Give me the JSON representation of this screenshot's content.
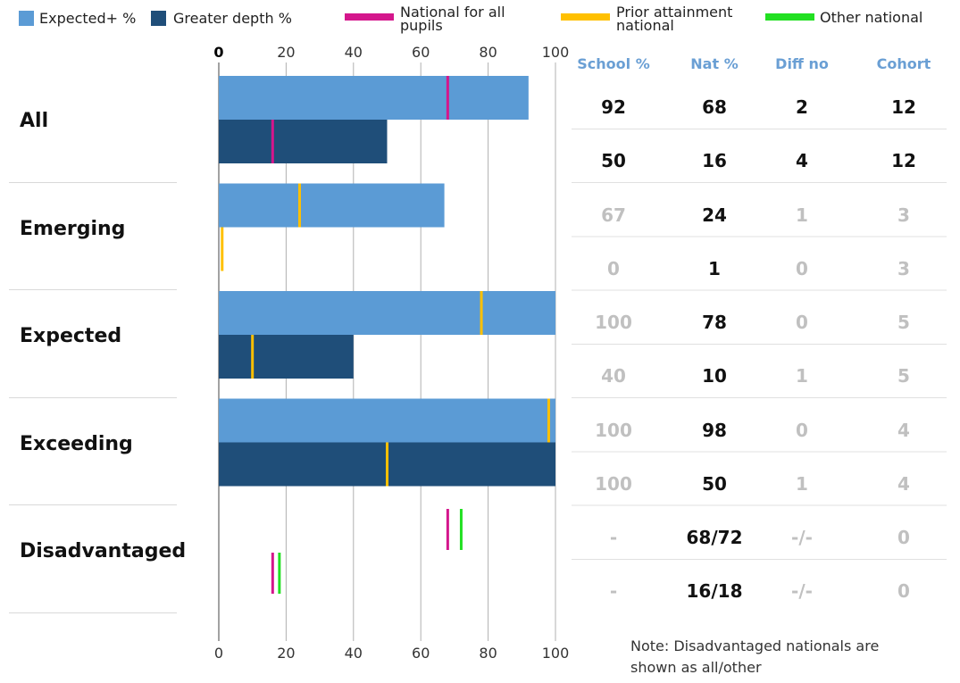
{
  "legend": [
    {
      "label": "Expected+ %",
      "color": "#5b9bd5",
      "shape": "square"
    },
    {
      "label": "Greater depth %",
      "color": "#1f4e79",
      "shape": "square"
    },
    {
      "label": "National for all pupils",
      "color": "#d4168c",
      "shape": "bar"
    },
    {
      "label": "Prior attainment national",
      "color": "#ffc000",
      "shape": "bar"
    },
    {
      "label": "Other national",
      "color": "#22e022",
      "shape": "bar"
    }
  ],
  "table_headers": [
    "School %",
    "Nat %",
    "Diff no",
    "Cohort"
  ],
  "note": "Note: Disadvantaged nationals are shown as all/other",
  "chart_data": {
    "type": "bar",
    "orientation": "horizontal",
    "xlim": [
      0,
      100
    ],
    "x_ticks": [
      "0",
      "20",
      "40",
      "60",
      "80",
      "100"
    ],
    "grid": true,
    "legend_position": "top",
    "groups": [
      {
        "label": "All",
        "rows": [
          {
            "series": "Expected+ %",
            "value": 92,
            "markers": [
              {
                "type": "National for all pupils",
                "value": 68
              }
            ],
            "table": {
              "school": "92",
              "nat": "68",
              "diff": "2",
              "cohort": "12",
              "emphasis": true
            }
          },
          {
            "series": "Greater depth %",
            "value": 50,
            "markers": [
              {
                "type": "National for all pupils",
                "value": 16
              }
            ],
            "table": {
              "school": "50",
              "nat": "16",
              "diff": "4",
              "cohort": "12",
              "emphasis": true
            }
          }
        ]
      },
      {
        "label": "Emerging",
        "rows": [
          {
            "series": "Expected+ %",
            "value": 67,
            "markers": [
              {
                "type": "Prior attainment national",
                "value": 24
              }
            ],
            "table": {
              "school": "67",
              "nat": "24",
              "diff": "1",
              "cohort": "3",
              "emphasis": false
            }
          },
          {
            "series": "Greater depth %",
            "value": 0,
            "markers": [
              {
                "type": "Prior attainment national",
                "value": 1
              }
            ],
            "table": {
              "school": "0",
              "nat": "1",
              "diff": "0",
              "cohort": "3",
              "emphasis": false
            }
          }
        ]
      },
      {
        "label": "Expected",
        "rows": [
          {
            "series": "Expected+ %",
            "value": 100,
            "markers": [
              {
                "type": "Prior attainment national",
                "value": 78
              }
            ],
            "table": {
              "school": "100",
              "nat": "78",
              "diff": "0",
              "cohort": "5",
              "emphasis": false
            }
          },
          {
            "series": "Greater depth %",
            "value": 40,
            "markers": [
              {
                "type": "Prior attainment national",
                "value": 10
              }
            ],
            "table": {
              "school": "40",
              "nat": "10",
              "diff": "1",
              "cohort": "5",
              "emphasis": false
            }
          }
        ]
      },
      {
        "label": "Exceeding",
        "rows": [
          {
            "series": "Expected+ %",
            "value": 100,
            "markers": [
              {
                "type": "Prior attainment national",
                "value": 98
              }
            ],
            "table": {
              "school": "100",
              "nat": "98",
              "diff": "0",
              "cohort": "4",
              "emphasis": false
            }
          },
          {
            "series": "Greater depth %",
            "value": 100,
            "markers": [
              {
                "type": "Prior attainment national",
                "value": 50
              }
            ],
            "table": {
              "school": "100",
              "nat": "50",
              "diff": "1",
              "cohort": "4",
              "emphasis": false
            }
          }
        ]
      },
      {
        "label": "Disadvantaged",
        "rows": [
          {
            "series": "Expected+ %",
            "value": null,
            "markers": [
              {
                "type": "National for all pupils",
                "value": 68
              },
              {
                "type": "Other national",
                "value": 72
              }
            ],
            "table": {
              "school": "-",
              "nat": "68/72",
              "diff": "-/-",
              "cohort": "0",
              "emphasis": false
            }
          },
          {
            "series": "Greater depth %",
            "value": null,
            "markers": [
              {
                "type": "National for all pupils",
                "value": 16
              },
              {
                "type": "Other national",
                "value": 18
              }
            ],
            "table": {
              "school": "-",
              "nat": "16/18",
              "diff": "-/-",
              "cohort": "0",
              "emphasis": false
            }
          }
        ]
      }
    ]
  }
}
